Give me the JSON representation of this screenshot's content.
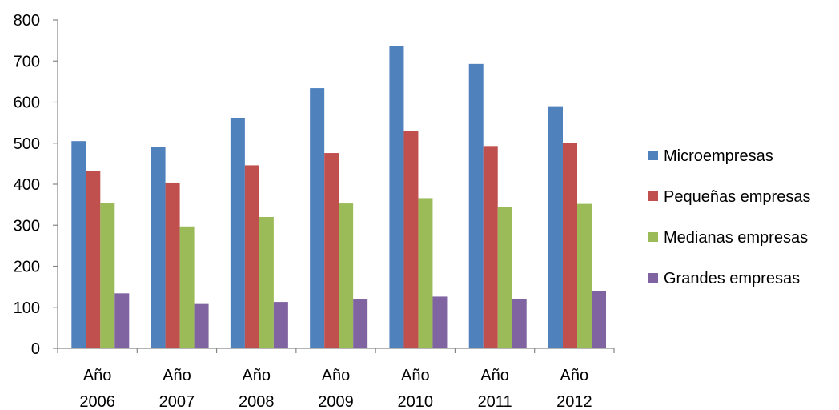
{
  "chart_data": {
    "type": "bar",
    "categories": [
      [
        "Año",
        "2006"
      ],
      [
        "Año",
        "2007"
      ],
      [
        "Año",
        "2008"
      ],
      [
        "Año",
        "2009"
      ],
      [
        "Año",
        "2010"
      ],
      [
        "Año",
        "2011"
      ],
      [
        "Año",
        "2012"
      ]
    ],
    "series": [
      {
        "name": "Microempresas",
        "color": "#4F81BD",
        "values": [
          505,
          491,
          562,
          634,
          737,
          693,
          590
        ]
      },
      {
        "name": "Pequeñas empresas",
        "color": "#C0504D",
        "values": [
          432,
          404,
          446,
          476,
          529,
          493,
          501
        ]
      },
      {
        "name": "Medianas empresas",
        "color": "#9BBB59",
        "values": [
          355,
          297,
          320,
          353,
          366,
          345,
          352
        ]
      },
      {
        "name": "Grandes empresas",
        "color": "#8064A2",
        "values": [
          134,
          108,
          113,
          119,
          126,
          121,
          140
        ]
      }
    ],
    "ylim": [
      0,
      800
    ],
    "yticks": [
      0,
      100,
      200,
      300,
      400,
      500,
      600,
      700,
      800
    ],
    "grid": false,
    "legend_position": "right",
    "title": "",
    "xlabel": "",
    "ylabel": ""
  }
}
